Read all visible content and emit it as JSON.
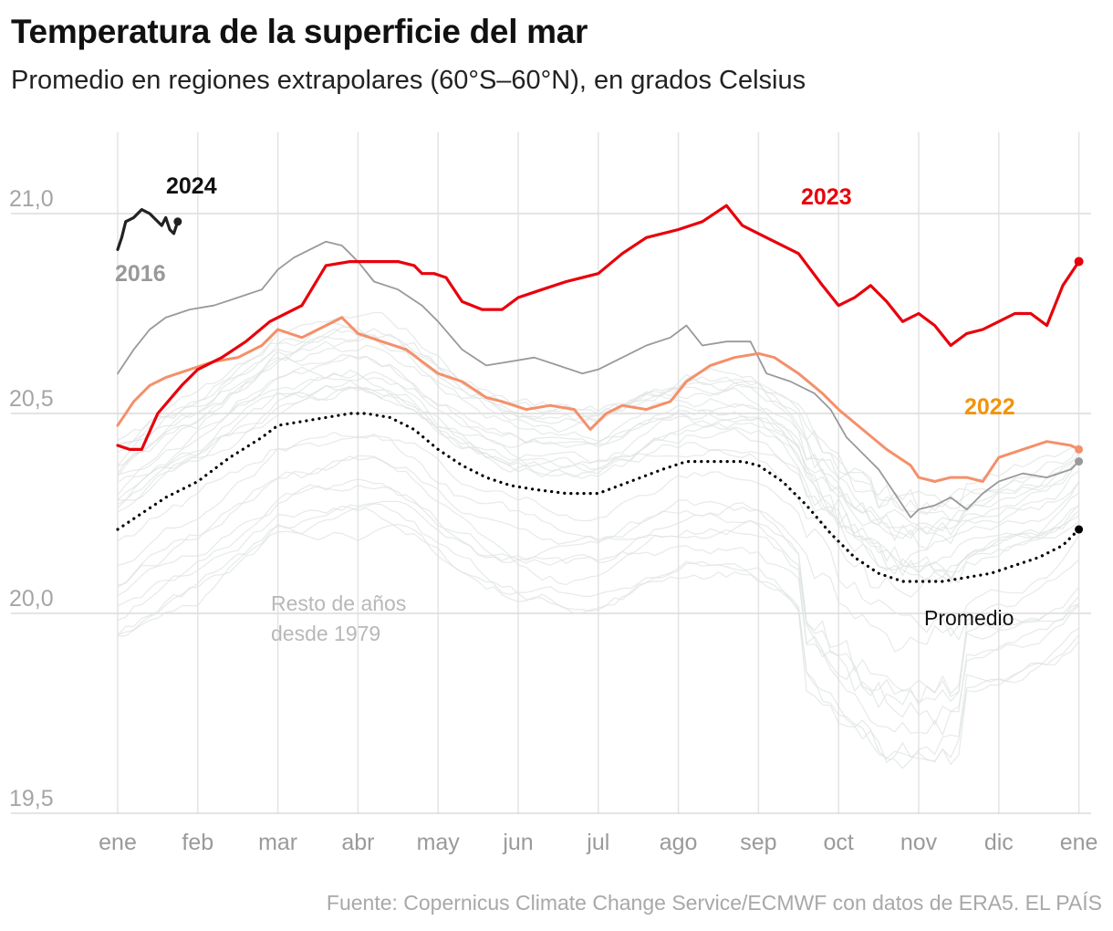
{
  "title": "Temperatura de la superficie del mar",
  "subtitle": "Promedio en regiones extrapolares (60°S–60°N), en grados Celsius",
  "source": "Fuente: Copernicus Climate Change Service/ECMWF con datos de ERA5. EL PAÍS",
  "chart_data": {
    "type": "line",
    "xlabel": "",
    "ylabel": "",
    "x_ticks": [
      "ene",
      "feb",
      "mar",
      "abr",
      "may",
      "jun",
      "jul",
      "ago",
      "sep",
      "oct",
      "nov",
      "dic",
      "ene"
    ],
    "y_ticks": [
      "19,5",
      "20,0",
      "20,5",
      "21,0"
    ],
    "ylim": [
      19.45,
      21.2
    ],
    "x_unit": "month (1.0 = 1 January)",
    "grid": true,
    "colors": {
      "y2024": "#222222",
      "y2023": "#e8000b",
      "y2022": "#f4906a",
      "y2016": "#999999",
      "promedio": "#000000",
      "others": "#dde3e1"
    },
    "series": [
      {
        "name": "2024",
        "key": "y2024",
        "label": "2024",
        "x": [
          1.0,
          1.05,
          1.1,
          1.2,
          1.3,
          1.4,
          1.5,
          1.55,
          1.6,
          1.65,
          1.7,
          1.75
        ],
        "values": [
          20.91,
          20.94,
          20.98,
          20.99,
          21.01,
          21.0,
          20.98,
          20.97,
          20.99,
          20.96,
          20.95,
          20.98
        ]
      },
      {
        "name": "2023",
        "key": "y2023",
        "label": "2023",
        "x": [
          1.0,
          1.15,
          1.3,
          1.5,
          1.8,
          2.0,
          2.3,
          2.6,
          2.9,
          3.3,
          3.6,
          3.9,
          4.2,
          4.5,
          4.7,
          4.8,
          4.95,
          5.1,
          5.3,
          5.55,
          5.8,
          6.0,
          6.3,
          6.6,
          7.0,
          7.3,
          7.6,
          8.0,
          8.3,
          8.6,
          8.8,
          9.0,
          9.2,
          9.5,
          9.8,
          10.0,
          10.2,
          10.4,
          10.6,
          10.8,
          11.0,
          11.2,
          11.4,
          11.6,
          11.8,
          12.0,
          12.2,
          12.4,
          12.6,
          12.8,
          13.0
        ],
        "values": [
          20.42,
          20.41,
          20.41,
          20.5,
          20.57,
          20.61,
          20.64,
          20.68,
          20.73,
          20.77,
          20.87,
          20.88,
          20.88,
          20.88,
          20.87,
          20.85,
          20.85,
          20.84,
          20.78,
          20.76,
          20.76,
          20.79,
          20.81,
          20.83,
          20.85,
          20.9,
          20.94,
          20.96,
          20.98,
          21.02,
          20.97,
          20.95,
          20.93,
          20.9,
          20.82,
          20.77,
          20.79,
          20.82,
          20.78,
          20.73,
          20.75,
          20.72,
          20.67,
          20.7,
          20.71,
          20.73,
          20.75,
          20.75,
          20.72,
          20.82,
          20.88
        ]
      },
      {
        "name": "2022",
        "key": "y2022",
        "label": "2022",
        "x": [
          1.0,
          1.2,
          1.4,
          1.6,
          1.9,
          2.2,
          2.5,
          2.8,
          3.0,
          3.3,
          3.6,
          3.8,
          4.0,
          4.3,
          4.6,
          4.8,
          5.0,
          5.3,
          5.6,
          5.8,
          6.1,
          6.4,
          6.7,
          6.9,
          7.1,
          7.3,
          7.6,
          7.9,
          8.1,
          8.4,
          8.7,
          9.0,
          9.2,
          9.5,
          9.8,
          10.0,
          10.3,
          10.6,
          10.9,
          11.0,
          11.2,
          11.4,
          11.6,
          11.8,
          12.0,
          12.3,
          12.6,
          12.9,
          13.0
        ],
        "values": [
          20.47,
          20.53,
          20.57,
          20.59,
          20.61,
          20.63,
          20.64,
          20.67,
          20.71,
          20.69,
          20.72,
          20.74,
          20.7,
          20.68,
          20.66,
          20.63,
          20.6,
          20.58,
          20.54,
          20.53,
          20.51,
          20.52,
          20.51,
          20.46,
          20.5,
          20.52,
          20.51,
          20.53,
          20.58,
          20.62,
          20.64,
          20.65,
          20.64,
          20.6,
          20.55,
          20.51,
          20.46,
          20.41,
          20.37,
          20.34,
          20.33,
          20.34,
          20.34,
          20.33,
          20.39,
          20.41,
          20.43,
          20.42,
          20.41
        ]
      },
      {
        "name": "2016",
        "key": "y2016",
        "label": "2016",
        "x": [
          1.0,
          1.2,
          1.4,
          1.6,
          1.9,
          2.2,
          2.5,
          2.8,
          3.0,
          3.2,
          3.4,
          3.6,
          3.8,
          4.0,
          4.2,
          4.5,
          4.8,
          5.0,
          5.3,
          5.6,
          5.9,
          6.2,
          6.5,
          6.8,
          7.0,
          7.3,
          7.6,
          7.9,
          8.1,
          8.3,
          8.6,
          8.9,
          9.1,
          9.4,
          9.7,
          9.9,
          10.1,
          10.3,
          10.5,
          10.7,
          10.9,
          11.0,
          11.2,
          11.4,
          11.6,
          11.8,
          12.0,
          12.3,
          12.6,
          12.9,
          13.0
        ],
        "values": [
          20.6,
          20.66,
          20.71,
          20.74,
          20.76,
          20.77,
          20.79,
          20.81,
          20.86,
          20.89,
          20.91,
          20.93,
          20.92,
          20.88,
          20.83,
          20.81,
          20.77,
          20.73,
          20.66,
          20.62,
          20.63,
          20.64,
          20.62,
          20.6,
          20.61,
          20.64,
          20.67,
          20.69,
          20.72,
          20.67,
          20.68,
          20.68,
          20.6,
          20.58,
          20.55,
          20.51,
          20.44,
          20.4,
          20.36,
          20.3,
          20.24,
          20.26,
          20.27,
          20.29,
          20.26,
          20.3,
          20.33,
          20.35,
          20.34,
          20.36,
          20.38
        ]
      },
      {
        "name": "Promedio",
        "key": "promedio",
        "label": "Promedio",
        "x": [
          1.0,
          1.3,
          1.6,
          2.0,
          2.4,
          2.8,
          3.0,
          3.3,
          3.6,
          3.9,
          4.1,
          4.4,
          4.7,
          5.0,
          5.3,
          5.6,
          5.9,
          6.2,
          6.6,
          7.0,
          7.4,
          7.8,
          8.1,
          8.5,
          8.8,
          9.0,
          9.3,
          9.6,
          9.9,
          10.2,
          10.5,
          10.8,
          11.0,
          11.3,
          11.6,
          11.9,
          12.2,
          12.5,
          12.8,
          13.0
        ],
        "values": [
          20.21,
          20.25,
          20.29,
          20.33,
          20.39,
          20.44,
          20.47,
          20.48,
          20.49,
          20.5,
          20.5,
          20.49,
          20.46,
          20.41,
          20.37,
          20.34,
          20.32,
          20.31,
          20.3,
          20.3,
          20.33,
          20.36,
          20.38,
          20.38,
          20.38,
          20.37,
          20.33,
          20.27,
          20.2,
          20.14,
          20.1,
          20.08,
          20.08,
          20.08,
          20.09,
          20.1,
          20.12,
          20.14,
          20.17,
          20.21
        ]
      }
    ],
    "annotations": [
      "Resto de años",
      "desde 1979"
    ]
  }
}
